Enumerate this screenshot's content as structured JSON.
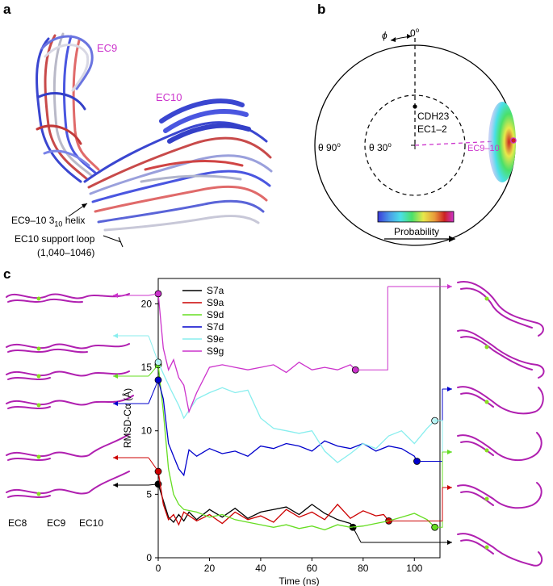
{
  "panels": {
    "a": {
      "letter": "a",
      "ec9": "EC9",
      "ec10": "EC10",
      "helix_prefix": "EC9–10 3",
      "helix_sub": "10",
      "helix_suffix": " helix",
      "support_loop": "EC10 support loop",
      "support_range": "(1,040–1046)"
    },
    "b": {
      "letter": "b",
      "top": "0",
      "top_sup": "o",
      "phi": "ϕ",
      "theta90": "θ 90",
      "theta90_sup": "o",
      "theta30": "θ 30",
      "theta30_sup": "o",
      "cdh_line1": "CDH23",
      "cdh_line2": "EC1–2",
      "ec910": "EC9–10",
      "colorbar_label": "Probability"
    },
    "c": {
      "letter": "c",
      "left_labels": [
        "EC8",
        "EC9",
        "EC10"
      ]
    }
  },
  "colors": {
    "magenta": "#cc33cc",
    "S7a": "#000000",
    "S9a": "#cc0000",
    "S9d": "#66dd22",
    "S7d": "#0000cc",
    "S9e": "#88eeee",
    "S9g": "#cc33cc"
  },
  "chart_data": {
    "type": "line",
    "xlabel": "Time (ns)",
    "ylabel": "RMSD-Cα (Å)",
    "xlim": [
      0,
      110
    ],
    "ylim": [
      0,
      22
    ],
    "xticks": [
      0,
      20,
      40,
      60,
      80,
      100
    ],
    "yticks": [
      0,
      5,
      10,
      15,
      20
    ],
    "legend_position": "top-left",
    "series": [
      {
        "name": "S7a",
        "color": "#000000",
        "x": [
          0,
          2,
          4,
          6,
          8,
          10,
          12,
          15,
          20,
          25,
          30,
          35,
          40,
          45,
          50,
          55,
          60,
          65,
          70,
          75,
          76
        ],
        "y": [
          5.8,
          4.5,
          3.2,
          2.8,
          3.4,
          2.9,
          3.6,
          3.0,
          3.8,
          3.2,
          3.9,
          3.1,
          3.6,
          3.8,
          4.0,
          3.4,
          4.2,
          3.5,
          3.0,
          2.7,
          2.4
        ]
      },
      {
        "name": "S9a",
        "color": "#cc0000",
        "x": [
          0,
          2,
          4,
          6,
          8,
          10,
          15,
          20,
          25,
          30,
          35,
          40,
          45,
          50,
          55,
          60,
          65,
          70,
          75,
          80,
          85,
          88,
          90
        ],
        "y": [
          6.8,
          4.2,
          3.0,
          3.4,
          2.6,
          3.6,
          2.9,
          3.4,
          2.7,
          3.6,
          3.0,
          3.3,
          2.8,
          3.8,
          3.2,
          3.6,
          3.0,
          4.2,
          3.1,
          3.7,
          3.3,
          3.4,
          2.9
        ]
      },
      {
        "name": "S9d",
        "color": "#66dd22",
        "x": [
          0,
          2,
          4,
          6,
          8,
          10,
          15,
          20,
          25,
          30,
          35,
          40,
          45,
          50,
          55,
          60,
          65,
          70,
          75,
          80,
          85,
          90,
          95,
          100,
          105,
          108
        ],
        "y": [
          15.2,
          11.5,
          7.0,
          5.0,
          4.2,
          3.8,
          3.6,
          3.2,
          3.4,
          3.0,
          2.8,
          2.6,
          2.4,
          2.6,
          2.3,
          2.5,
          2.2,
          2.6,
          2.4,
          2.5,
          2.7,
          2.9,
          3.2,
          3.5,
          3.0,
          2.4
        ]
      },
      {
        "name": "S7d",
        "color": "#0000cc",
        "x": [
          0,
          2,
          4,
          6,
          8,
          10,
          12,
          15,
          20,
          25,
          30,
          35,
          40,
          45,
          50,
          55,
          60,
          65,
          70,
          75,
          80,
          85,
          90,
          95,
          100,
          101
        ],
        "y": [
          14.0,
          12.5,
          9.0,
          8.0,
          7.0,
          6.5,
          8.5,
          8.0,
          8.6,
          8.2,
          8.4,
          8.0,
          8.8,
          8.6,
          9.0,
          8.8,
          8.4,
          9.2,
          8.8,
          8.6,
          9.0,
          8.4,
          8.8,
          8.6,
          8.0,
          7.6
        ]
      },
      {
        "name": "S9e",
        "color": "#88eeee",
        "x": [
          0,
          2,
          5,
          8,
          10,
          15,
          20,
          25,
          30,
          35,
          40,
          45,
          50,
          55,
          60,
          65,
          70,
          75,
          80,
          85,
          90,
          95,
          100,
          105,
          108
        ],
        "y": [
          15.4,
          14.5,
          13.2,
          12.0,
          11.0,
          12.5,
          13.0,
          13.4,
          13.0,
          13.2,
          11.0,
          10.2,
          10.0,
          9.8,
          10.0,
          8.4,
          7.5,
          8.2,
          9.0,
          8.6,
          9.6,
          10.0,
          9.0,
          10.2,
          10.8
        ]
      },
      {
        "name": "S9g",
        "color": "#cc33cc",
        "x": [
          0,
          2,
          4,
          6,
          8,
          10,
          12,
          15,
          20,
          25,
          30,
          35,
          40,
          45,
          50,
          55,
          60,
          65,
          70,
          75,
          77
        ],
        "y": [
          20.8,
          16.5,
          14.8,
          15.6,
          14.2,
          13.6,
          11.5,
          13.0,
          15.0,
          15.2,
          15.0,
          14.8,
          15.0,
          15.2,
          14.6,
          15.4,
          14.8,
          15.0,
          14.8,
          15.2,
          14.8
        ]
      }
    ]
  }
}
